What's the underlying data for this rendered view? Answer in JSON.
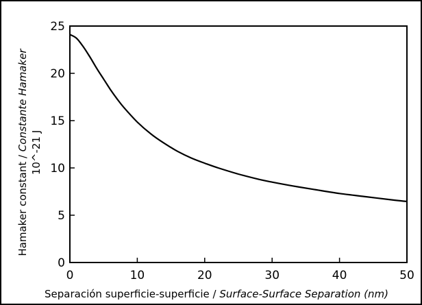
{
  "chart_data": {
    "type": "line",
    "title": "",
    "xlabel_main": "Separación superficie-superficie",
    "xlabel_sep": " / ",
    "xlabel_italic": "Surface-Surface Separation (nm)",
    "ylabel_main": "Hamaker constant / ",
    "ylabel_italic": "Constante Hamaker",
    "ylabel_units": "10^-21 J",
    "xlim": [
      0,
      50
    ],
    "ylim": [
      0,
      25
    ],
    "xticks": [
      0,
      10,
      20,
      30,
      40,
      50
    ],
    "yticks": [
      0,
      5,
      10,
      15,
      20,
      25
    ],
    "grid": false,
    "series": [
      {
        "x": [
          0,
          1,
          2,
          3,
          4,
          5,
          6,
          7,
          8,
          10,
          12,
          14,
          16,
          18,
          20,
          22,
          25,
          28,
          30,
          33,
          36,
          40,
          44,
          48,
          50
        ],
        "y": [
          24.1,
          23.7,
          22.8,
          21.7,
          20.5,
          19.4,
          18.3,
          17.3,
          16.4,
          14.85,
          13.6,
          12.6,
          11.75,
          11.05,
          10.5,
          10.0,
          9.35,
          8.8,
          8.5,
          8.1,
          7.75,
          7.3,
          6.95,
          6.6,
          6.45
        ]
      }
    ],
    "colors": {
      "line": "#000000",
      "axis": "#000000"
    }
  }
}
